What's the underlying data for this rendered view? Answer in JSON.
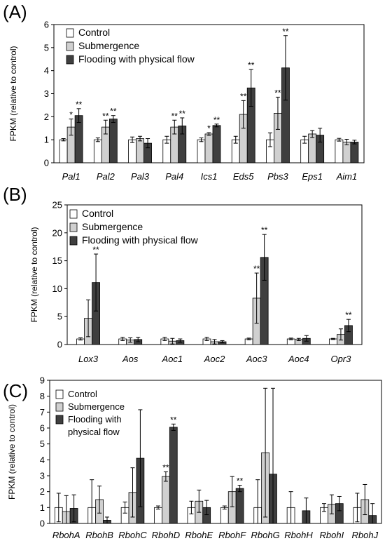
{
  "colors": {
    "control": "#ffffff",
    "submergence": "#d0d0d0",
    "flooding": "#3f3f3f",
    "edge": "#000000",
    "axis": "#8a8a8a"
  },
  "chart_data": [
    {
      "panel_label": "(A)",
      "type": "bar",
      "ylabel": "FPKM (relative to control)",
      "ylim": [
        0,
        6
      ],
      "yticks": [
        "0",
        "1",
        "2",
        "3",
        "4",
        "5",
        "6"
      ],
      "legend_position": "top-left",
      "categories": [
        "Pal1",
        "Pal2",
        "Pal3",
        "Pal4",
        "Ics1",
        "Eds5",
        "Pbs3",
        "Eps1",
        "Aim1"
      ],
      "series": [
        {
          "name": "Control",
          "values": [
            1.0,
            1.0,
            1.0,
            1.0,
            1.0,
            1.0,
            1.0,
            1.0,
            1.0
          ],
          "errors": [
            0.05,
            0.08,
            0.12,
            0.15,
            0.08,
            0.15,
            0.3,
            0.15,
            0.06
          ]
        },
        {
          "name": "Submergence",
          "values": [
            1.55,
            1.55,
            1.05,
            1.55,
            1.25,
            2.1,
            2.15,
            1.25,
            0.9
          ],
          "errors": [
            0.35,
            0.3,
            0.1,
            0.3,
            0.06,
            0.6,
            0.7,
            0.15,
            0.12
          ]
        },
        {
          "name": "Flooding with physical flow",
          "values": [
            2.05,
            1.9,
            0.85,
            1.6,
            1.62,
            3.25,
            4.12,
            1.2,
            0.9
          ],
          "errors": [
            0.3,
            0.15,
            0.2,
            0.35,
            0.06,
            0.8,
            1.4,
            0.3,
            0.08
          ]
        }
      ],
      "annotations": [
        {
          "category": "Pal1",
          "series": 1,
          "text": "*"
        },
        {
          "category": "Pal1",
          "series": 2,
          "text": "**"
        },
        {
          "category": "Pal2",
          "series": 1,
          "text": "**"
        },
        {
          "category": "Pal2",
          "series": 2,
          "text": "**"
        },
        {
          "category": "Pal4",
          "series": 1,
          "text": "**"
        },
        {
          "category": "Pal4",
          "series": 2,
          "text": "**"
        },
        {
          "category": "Ics1",
          "series": 1,
          "text": "*"
        },
        {
          "category": "Ics1",
          "series": 2,
          "text": "**"
        },
        {
          "category": "Eds5",
          "series": 1,
          "text": "**"
        },
        {
          "category": "Eds5",
          "series": 2,
          "text": "**"
        },
        {
          "category": "Pbs3",
          "series": 1,
          "text": "**"
        },
        {
          "category": "Pbs3",
          "series": 2,
          "text": "**"
        }
      ]
    },
    {
      "panel_label": "(B)",
      "type": "bar",
      "ylabel": "FPKM (relative to control)",
      "ylim": [
        0,
        25
      ],
      "yticks": [
        "0",
        "5",
        "10",
        "15",
        "20",
        "25"
      ],
      "legend_position": "top-left",
      "categories": [
        "Lox3",
        "Aos",
        "Aoc1",
        "Aoc2",
        "Aoc3",
        "Aoc4",
        "Opr3"
      ],
      "series": [
        {
          "name": "Control",
          "values": [
            1.0,
            1.0,
            1.0,
            1.0,
            1.0,
            1.0,
            1.0
          ],
          "errors": [
            0.2,
            0.3,
            0.3,
            0.3,
            0.15,
            0.15,
            0.1
          ]
        },
        {
          "name": "Submergence",
          "values": [
            4.7,
            0.8,
            0.6,
            0.5,
            8.3,
            0.9,
            1.8
          ],
          "errors": [
            3.3,
            0.4,
            0.5,
            0.4,
            4.5,
            0.2,
            1.0
          ]
        },
        {
          "name": "Flooding with physical flow",
          "values": [
            11.1,
            0.9,
            0.7,
            0.5,
            15.6,
            1.1,
            3.4
          ],
          "errors": [
            5.1,
            0.4,
            0.3,
            0.2,
            4.1,
            0.5,
            1.1
          ]
        }
      ],
      "annotations": [
        {
          "category": "Lox3",
          "series": 2,
          "text": "**"
        },
        {
          "category": "Aoc3",
          "series": 1,
          "text": "**"
        },
        {
          "category": "Aoc3",
          "series": 2,
          "text": "**"
        },
        {
          "category": "Opr3",
          "series": 2,
          "text": "**"
        }
      ]
    },
    {
      "panel_label": "(C)",
      "type": "bar",
      "ylabel": "FPKM (relative to control)",
      "ylim": [
        0,
        9
      ],
      "yticks": [
        "0",
        "1",
        "2",
        "3",
        "4",
        "5",
        "6",
        "7",
        "8",
        "9"
      ],
      "legend_position": "top-left",
      "categories": [
        "RbohA",
        "RbohB",
        "RbohC",
        "RbohD",
        "RbohE",
        "RbohF",
        "RbohG",
        "RbohH",
        "RbohI",
        "RbohJ"
      ],
      "series": [
        {
          "name": "Control",
          "values": [
            1.0,
            1.0,
            1.0,
            1.0,
            1.0,
            1.0,
            1.0,
            1.0,
            1.0,
            1.0
          ],
          "errors": [
            0.9,
            1.75,
            0.35,
            0.1,
            0.4,
            0.1,
            1.75,
            1.0,
            0.25,
            0.9
          ]
        },
        {
          "name": "Submergence",
          "values": [
            0.75,
            1.5,
            1.95,
            2.95,
            1.4,
            2.0,
            4.45,
            0.0,
            1.2,
            1.5
          ],
          "errors": [
            1.0,
            0.85,
            1.55,
            0.3,
            0.7,
            0.95,
            4.05,
            0.0,
            0.6,
            0.95
          ]
        },
        {
          "name": "Flooding with physical flow",
          "values": [
            0.95,
            0.2,
            4.1,
            6.05,
            1.0,
            2.2,
            3.1,
            0.8,
            1.25,
            0.5
          ],
          "errors": [
            0.85,
            0.2,
            3.05,
            0.2,
            0.45,
            0.2,
            5.4,
            0.8,
            0.45,
            0.75
          ]
        }
      ],
      "legend_labels": [
        "Control",
        "Submergence",
        "Flooding with",
        "physical flow"
      ],
      "annotations": [
        {
          "category": "RbohD",
          "series": 1,
          "text": "**"
        },
        {
          "category": "RbohD",
          "series": 2,
          "text": "**"
        },
        {
          "category": "RbohF",
          "series": 2,
          "text": "**"
        }
      ]
    }
  ]
}
